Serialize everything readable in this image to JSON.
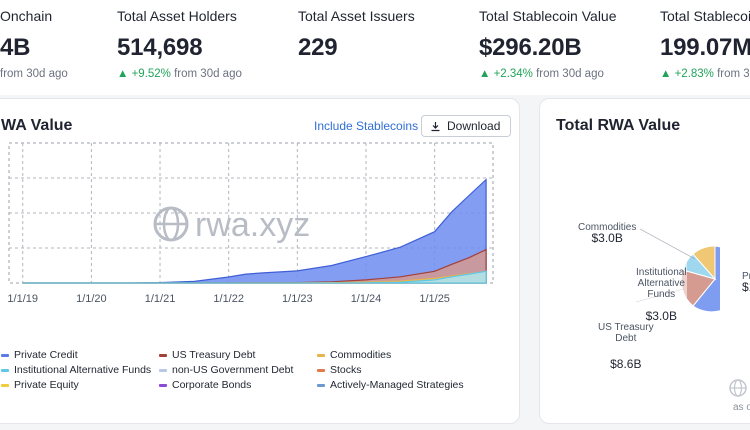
{
  "stats": [
    {
      "label": "Onchain",
      "value": "4B",
      "change_up": "",
      "change_rest": "from 30d ago"
    },
    {
      "label": "Total Asset Holders",
      "value": "514,698",
      "change_up": "▲ +9.52%",
      "change_rest": " from 30d ago"
    },
    {
      "label": "Total Asset Issuers",
      "value": "229",
      "change_up": "",
      "change_rest": ""
    },
    {
      "label": "Total Stablecoin Value",
      "value": "$296.20B",
      "change_up": "▲ +2.34%",
      "change_rest": " from 30d ago"
    },
    {
      "label": "Total Stablecoin",
      "value": "199.07M",
      "change_up": "▲ +2.83%",
      "change_rest": " from 30"
    }
  ],
  "line_card": {
    "title": "WA Value",
    "include_stablecoins": "Include Stablecoins",
    "download": "Download",
    "watermark": "rwa.xyz",
    "legend": [
      {
        "label": "Private Credit",
        "color": "#5b7be6"
      },
      {
        "label": "US Treasury Debt",
        "color": "#a2403a"
      },
      {
        "label": "Commodities",
        "color": "#e8b44a"
      },
      {
        "label": "Institutional Alternative Funds",
        "color": "#5ec8e6"
      },
      {
        "label": "non-US Government Debt",
        "color": "#b9c6e6"
      },
      {
        "label": "Stocks",
        "color": "#e07a4a"
      },
      {
        "label": "Private Equity",
        "color": "#f2cc3a"
      },
      {
        "label": "Corporate Bonds",
        "color": "#8a4bd6"
      },
      {
        "label": "Actively-Managed Strategies",
        "color": "#6c9ad0"
      }
    ]
  },
  "pie_card": {
    "title": "Total RWA Value",
    "labels": [
      {
        "name": "Commodities",
        "value": "$3.0B"
      },
      {
        "name": "Institutional\nAlternative\nFunds",
        "value": "$3.0B"
      },
      {
        "name": "US Treasury\nDebt",
        "value": "$8.6B"
      },
      {
        "name": "Pr",
        "value": "$1"
      }
    ],
    "footer": "as o"
  },
  "chart_data": {
    "type": "area",
    "stacked": true,
    "x_ticks": [
      "1/1/19",
      "1/1/20",
      "1/1/21",
      "1/1/22",
      "1/1/23",
      "1/1/24",
      "1/1/25"
    ],
    "x": [
      "2019-01",
      "2019-07",
      "2020-01",
      "2020-07",
      "2021-01",
      "2021-07",
      "2022-01",
      "2022-04",
      "2022-07",
      "2023-01",
      "2023-07",
      "2024-01",
      "2024-07",
      "2025-01",
      "2025-04",
      "2025-07",
      "2025-10"
    ],
    "series": [
      {
        "name": "US Treasury Debt",
        "values": [
          0,
          0,
          0,
          0,
          0,
          0,
          0.05,
          0.1,
          0.1,
          0.1,
          0.3,
          0.8,
          1.6,
          3.0,
          4.8,
          6.5,
          8.6
        ]
      },
      {
        "name": "Private Credit",
        "values": [
          0,
          0,
          0,
          0,
          0.1,
          0.4,
          1.5,
          2.2,
          2.5,
          3.0,
          4.2,
          6.0,
          7.6,
          10.2,
          13.5,
          16.0,
          18.0
        ]
      },
      {
        "name": "Commodities",
        "values": [
          0,
          0,
          0,
          0,
          0,
          0,
          0,
          0.05,
          0.05,
          0.05,
          0.1,
          0.2,
          0.5,
          1.2,
          1.8,
          2.4,
          3.0
        ]
      },
      {
        "name": "Institutional Alternative Funds",
        "values": [
          0,
          0,
          0,
          0,
          0,
          0,
          0,
          0,
          0,
          0,
          0,
          0.05,
          0.2,
          0.8,
          1.6,
          2.3,
          3.0
        ]
      }
    ],
    "grid": true,
    "legend_position": "bottom"
  }
}
